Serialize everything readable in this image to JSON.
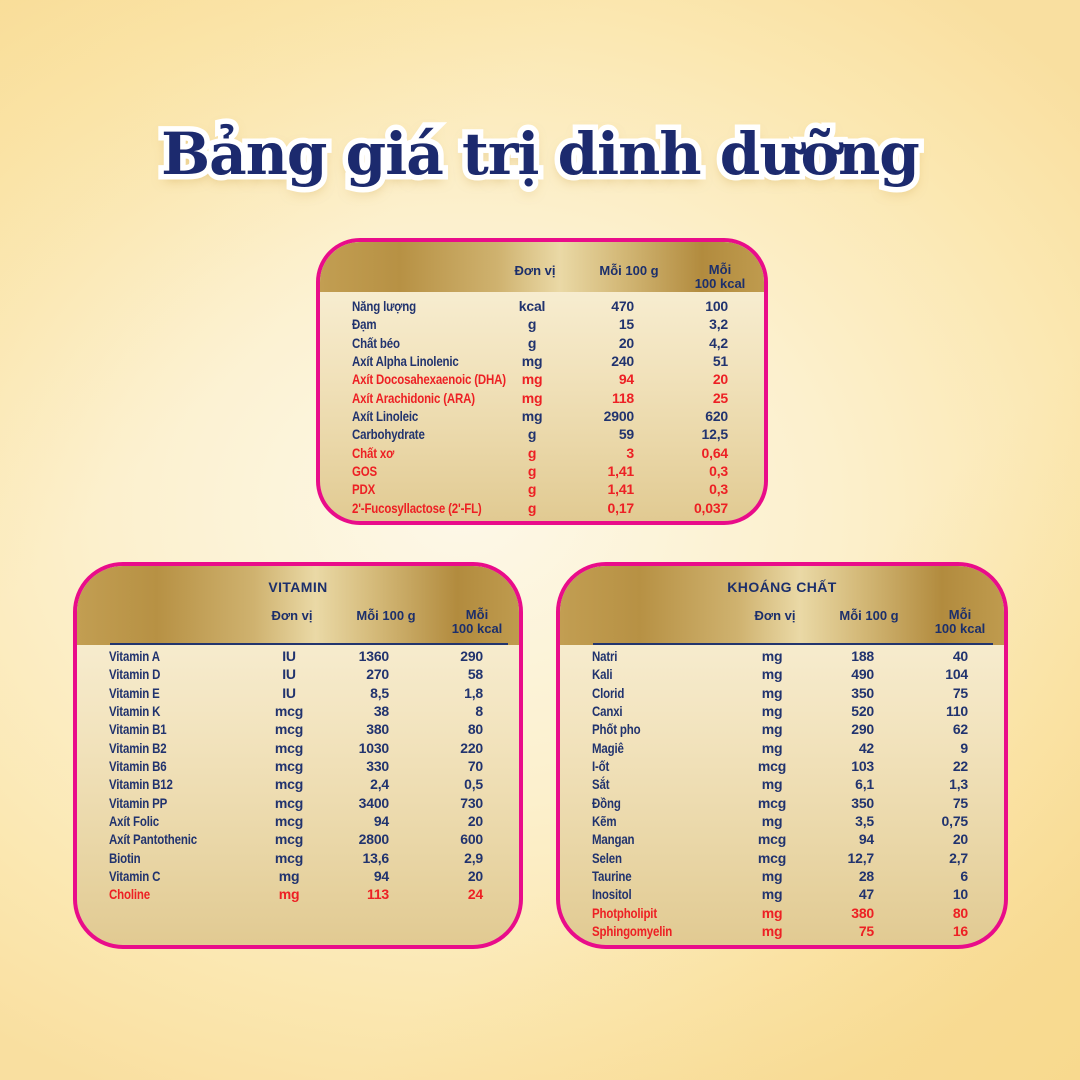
{
  "page": {
    "title": "Bảng giá trị dinh dưỡng"
  },
  "colors": {
    "accent_pink": "#e90c8a",
    "text_navy": "#21336e",
    "highlight_red": "#ed2024",
    "gold_header_dark": "#b28b3e",
    "gold_header_light": "#ead9a6",
    "background_yellow": "#fbe7b0"
  },
  "columns": {
    "unit": "Đơn vị",
    "per_100g": "Mỗi 100 g",
    "per_100kcal_line1": "Mỗi",
    "per_100kcal_line2": "100 kcal"
  },
  "tables": [
    {
      "name": "",
      "rows": [
        {
          "label": "Năng lượng",
          "unit": "kcal",
          "per_100g": "470",
          "per_100kcal": "100",
          "red": false
        },
        {
          "label": "Đạm",
          "unit": "g",
          "per_100g": "15",
          "per_100kcal": "3,2",
          "red": false
        },
        {
          "label": "Chất béo",
          "unit": "g",
          "per_100g": "20",
          "per_100kcal": "4,2",
          "red": false
        },
        {
          "label": "Axít Alpha Linolenic",
          "unit": "mg",
          "per_100g": "240",
          "per_100kcal": "51",
          "red": false
        },
        {
          "label": "Axít Docosahexaenoic (DHA)",
          "unit": "mg",
          "per_100g": "94",
          "per_100kcal": "20",
          "red": true
        },
        {
          "label": "Axít Arachidonic (ARA)",
          "unit": "mg",
          "per_100g": "118",
          "per_100kcal": "25",
          "red": true
        },
        {
          "label": "Axít Linoleic",
          "unit": "mg",
          "per_100g": "2900",
          "per_100kcal": "620",
          "red": false
        },
        {
          "label": "Carbohydrate",
          "unit": "g",
          "per_100g": "59",
          "per_100kcal": "12,5",
          "red": false
        },
        {
          "label": "Chất xơ",
          "unit": "g",
          "per_100g": "3",
          "per_100kcal": "0,64",
          "red": true
        },
        {
          "label": "GOS",
          "unit": "g",
          "per_100g": "1,41",
          "per_100kcal": "0,3",
          "red": true
        },
        {
          "label": "PDX",
          "unit": "g",
          "per_100g": "1,41",
          "per_100kcal": "0,3",
          "red": true
        },
        {
          "label": "2'-Fucosyllactose (2'-FL)",
          "unit": "g",
          "per_100g": "0,17",
          "per_100kcal": "0,037",
          "red": true
        }
      ]
    },
    {
      "name": "VITAMIN",
      "rows": [
        {
          "label": "Vitamin A",
          "unit": "IU",
          "per_100g": "1360",
          "per_100kcal": "290",
          "red": false
        },
        {
          "label": "Vitamin D",
          "unit": "IU",
          "per_100g": "270",
          "per_100kcal": "58",
          "red": false
        },
        {
          "label": "Vitamin E",
          "unit": "IU",
          "per_100g": "8,5",
          "per_100kcal": "1,8",
          "red": false
        },
        {
          "label": "Vitamin K",
          "unit": "mcg",
          "per_100g": "38",
          "per_100kcal": "8",
          "red": false
        },
        {
          "label": "Vitamin B1",
          "unit": "mcg",
          "per_100g": "380",
          "per_100kcal": "80",
          "red": false
        },
        {
          "label": "Vitamin B2",
          "unit": "mcg",
          "per_100g": "1030",
          "per_100kcal": "220",
          "red": false
        },
        {
          "label": "Vitamin B6",
          "unit": "mcg",
          "per_100g": "330",
          "per_100kcal": "70",
          "red": false
        },
        {
          "label": "Vitamin B12",
          "unit": "mcg",
          "per_100g": "2,4",
          "per_100kcal": "0,5",
          "red": false
        },
        {
          "label": "Vitamin PP",
          "unit": "mcg",
          "per_100g": "3400",
          "per_100kcal": "730",
          "red": false
        },
        {
          "label": "Axít Folic",
          "unit": "mcg",
          "per_100g": "94",
          "per_100kcal": "20",
          "red": false
        },
        {
          "label": "Axít Pantothenic",
          "unit": "mcg",
          "per_100g": "2800",
          "per_100kcal": "600",
          "red": false
        },
        {
          "label": "Biotin",
          "unit": "mcg",
          "per_100g": "13,6",
          "per_100kcal": "2,9",
          "red": false
        },
        {
          "label": "Vitamin C",
          "unit": "mg",
          "per_100g": "94",
          "per_100kcal": "20",
          "red": false
        },
        {
          "label": "Choline",
          "unit": "mg",
          "per_100g": "113",
          "per_100kcal": "24",
          "red": true
        }
      ]
    },
    {
      "name": "KHOÁNG CHẤT",
      "rows": [
        {
          "label": "Natri",
          "unit": "mg",
          "per_100g": "188",
          "per_100kcal": "40",
          "red": false
        },
        {
          "label": "Kali",
          "unit": "mg",
          "per_100g": "490",
          "per_100kcal": "104",
          "red": false
        },
        {
          "label": "Clorid",
          "unit": "mg",
          "per_100g": "350",
          "per_100kcal": "75",
          "red": false
        },
        {
          "label": "Canxi",
          "unit": "mg",
          "per_100g": "520",
          "per_100kcal": "110",
          "red": false
        },
        {
          "label": "Phốt pho",
          "unit": "mg",
          "per_100g": "290",
          "per_100kcal": "62",
          "red": false
        },
        {
          "label": "Magiê",
          "unit": "mg",
          "per_100g": "42",
          "per_100kcal": "9",
          "red": false
        },
        {
          "label": "I-ốt",
          "unit": "mcg",
          "per_100g": "103",
          "per_100kcal": "22",
          "red": false
        },
        {
          "label": "Sắt",
          "unit": "mg",
          "per_100g": "6,1",
          "per_100kcal": "1,3",
          "red": false
        },
        {
          "label": "Đồng",
          "unit": "mcg",
          "per_100g": "350",
          "per_100kcal": "75",
          "red": false
        },
        {
          "label": "Kẽm",
          "unit": "mg",
          "per_100g": "3,5",
          "per_100kcal": "0,75",
          "red": false
        },
        {
          "label": "Mangan",
          "unit": "mcg",
          "per_100g": "94",
          "per_100kcal": "20",
          "red": false
        },
        {
          "label": "Selen",
          "unit": "mcg",
          "per_100g": "12,7",
          "per_100kcal": "2,7",
          "red": false
        },
        {
          "label": "Taurine",
          "unit": "mg",
          "per_100g": "28",
          "per_100kcal": "6",
          "red": false
        },
        {
          "label": "Inositol",
          "unit": "mg",
          "per_100g": "47",
          "per_100kcal": "10",
          "red": false
        },
        {
          "label": "Photpholipit",
          "unit": "mg",
          "per_100g": "380",
          "per_100kcal": "80",
          "red": true
        },
        {
          "label": "Sphingomyelin",
          "unit": "mg",
          "per_100g": "75",
          "per_100kcal": "16",
          "red": true
        }
      ]
    }
  ]
}
